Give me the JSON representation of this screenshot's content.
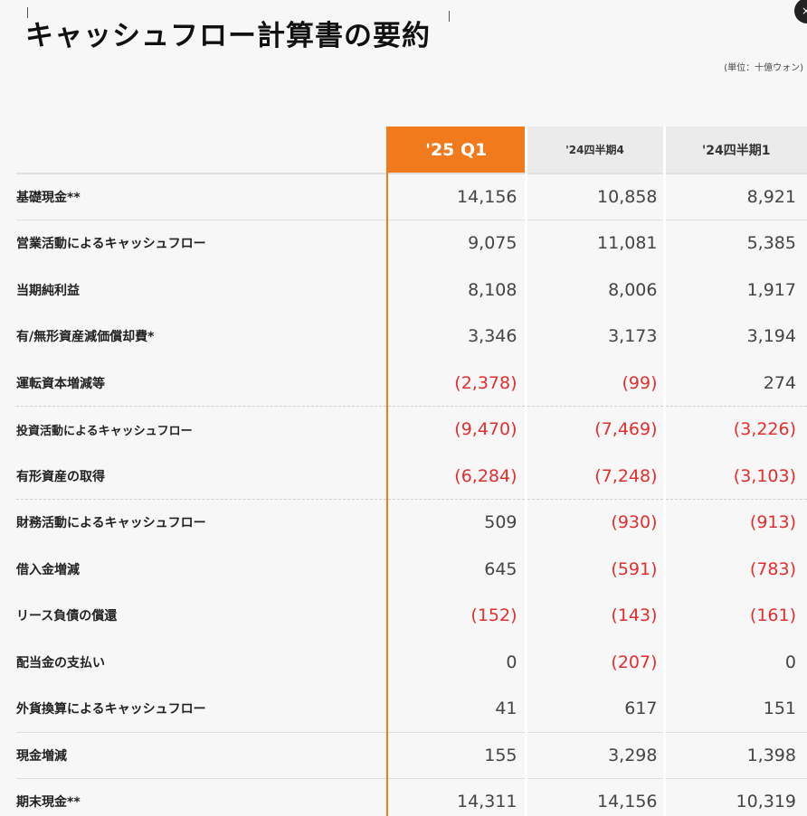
{
  "title": "キャッシュフロー計算書の要約",
  "unit_note": "(単位：十億ウォン)",
  "close_label": "×",
  "columns": [
    "'25 Q1",
    "'24四半期4",
    "'24四半期1"
  ],
  "rows": [
    {
      "label": "基礎現金**",
      "q1": "14,156",
      "q4": "10,858",
      "h1": "8,921"
    },
    {
      "label": "営業活動によるキャッシュフロー",
      "q1": "9,075",
      "q4": "11,081",
      "h1": "5,385"
    },
    {
      "label": "当期純利益",
      "q1": "8,108",
      "q4": "8,006",
      "h1": "1,917"
    },
    {
      "label": "有/無形資産減価償却費*",
      "q1": "3,346",
      "q4": "3,173",
      "h1": "3,194"
    },
    {
      "label": "運転資本増減等",
      "q1": "(2,378)",
      "q4": "(99)",
      "h1": "274"
    },
    {
      "label": "投資活動によるキャッシュフロー",
      "q1": "(9,470)",
      "q4": "(7,469)",
      "h1": "(3,226)"
    },
    {
      "label": "有形資産の取得",
      "q1": "(6,284)",
      "q4": "(7,248)",
      "h1": "(3,103)"
    },
    {
      "label": "財務活動によるキャッシュフロー",
      "q1": "509",
      "q4": "(930)",
      "h1": "(913)"
    },
    {
      "label": "借入金増減",
      "q1": "645",
      "q4": "(591)",
      "h1": "(783)"
    },
    {
      "label": "リース負債の償還",
      "q1": "(152)",
      "q4": "(143)",
      "h1": "(161)"
    },
    {
      "label": "配当金の支払い",
      "q1": "0",
      "q4": "(207)",
      "h1": "0"
    },
    {
      "label": "外貨換算によるキャッシュフロー",
      "q1": "41",
      "q4": "617",
      "h1": "151"
    },
    {
      "label": "現金増減",
      "q1": "155",
      "q4": "3,298",
      "h1": "1,398"
    },
    {
      "label": "期末現金**",
      "q1": "14,311",
      "q4": "14,156",
      "h1": "10,319"
    }
  ],
  "colors": {
    "accent": "#f07a1c",
    "negative": "#e62d2d"
  }
}
